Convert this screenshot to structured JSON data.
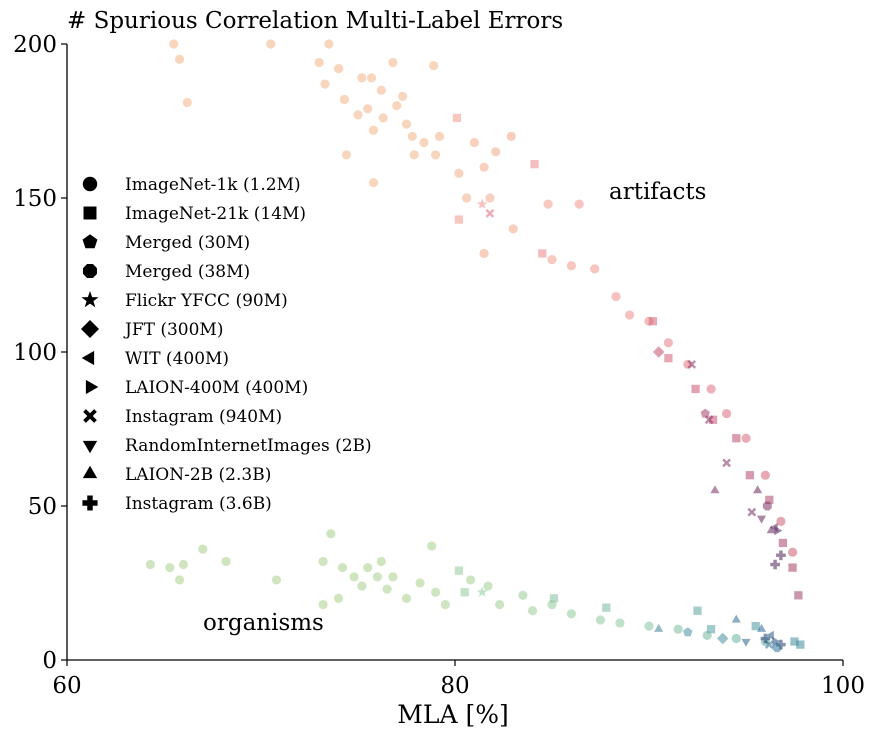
{
  "chart_data": {
    "type": "scatter",
    "title": "# Spurious Correlation Multi-Label Errors",
    "xlabel": "MLA [%]",
    "ylabel": "",
    "xlim": [
      60,
      100
    ],
    "ylim": [
      0,
      200
    ],
    "x_ticks": [
      60,
      80,
      100
    ],
    "y_ticks": [
      0,
      50,
      100,
      150,
      200
    ],
    "grid": false,
    "legend_position": "left",
    "legend": [
      {
        "label": "ImageNet-1k (1.2M)",
        "marker": "circle"
      },
      {
        "label": "ImageNet-21k (14M)",
        "marker": "square"
      },
      {
        "label": "Merged (30M)",
        "marker": "pentagon"
      },
      {
        "label": "Merged (38M)",
        "marker": "octagon"
      },
      {
        "label": "Flickr YFCC (90M)",
        "marker": "star"
      },
      {
        "label": "JFT (300M)",
        "marker": "diamond"
      },
      {
        "label": "WIT (400M)",
        "marker": "triangle-left"
      },
      {
        "label": "LAION-400M (400M)",
        "marker": "triangle-right"
      },
      {
        "label": "Instagram (940M)",
        "marker": "x"
      },
      {
        "label": "RandomInternetImages (2B)",
        "marker": "triangle-down"
      },
      {
        "label": "LAION-2B (2.3B)",
        "marker": "triangle-up"
      },
      {
        "label": "Instagram (3.6B)",
        "marker": "plus"
      }
    ],
    "annotations": [
      {
        "text": "artifacts",
        "x": 88,
        "y": 150
      },
      {
        "text": "organisms",
        "x": 67,
        "y": 11
      }
    ],
    "series": [
      {
        "group": "artifacts",
        "color_range": [
          "#f0b487",
          "#f08c8c",
          "#c8506e",
          "#6e2860",
          "#3c1e50"
        ],
        "points": [
          {
            "marker": "circle",
            "x": 65.5,
            "y": 200
          },
          {
            "marker": "circle",
            "x": 70.5,
            "y": 200
          },
          {
            "marker": "circle",
            "x": 73.5,
            "y": 200
          },
          {
            "marker": "circle",
            "x": 65.8,
            "y": 195
          },
          {
            "marker": "circle",
            "x": 66.2,
            "y": 181
          },
          {
            "marker": "circle",
            "x": 73.0,
            "y": 194
          },
          {
            "marker": "circle",
            "x": 74.0,
            "y": 192
          },
          {
            "marker": "circle",
            "x": 75.2,
            "y": 189
          },
          {
            "marker": "circle",
            "x": 75.7,
            "y": 189
          },
          {
            "marker": "circle",
            "x": 76.8,
            "y": 194
          },
          {
            "marker": "circle",
            "x": 78.9,
            "y": 193
          },
          {
            "marker": "circle",
            "x": 73.3,
            "y": 187
          },
          {
            "marker": "circle",
            "x": 74.3,
            "y": 182
          },
          {
            "marker": "circle",
            "x": 76.2,
            "y": 185
          },
          {
            "marker": "circle",
            "x": 77.3,
            "y": 183
          },
          {
            "marker": "circle",
            "x": 75.0,
            "y": 177
          },
          {
            "marker": "circle",
            "x": 75.5,
            "y": 179
          },
          {
            "marker": "circle",
            "x": 76.3,
            "y": 176
          },
          {
            "marker": "circle",
            "x": 77.0,
            "y": 180
          },
          {
            "marker": "circle",
            "x": 75.8,
            "y": 172
          },
          {
            "marker": "circle",
            "x": 77.5,
            "y": 174
          },
          {
            "marker": "circle",
            "x": 77.8,
            "y": 170
          },
          {
            "marker": "circle",
            "x": 78.4,
            "y": 168
          },
          {
            "marker": "circle",
            "x": 74.4,
            "y": 164
          },
          {
            "marker": "circle",
            "x": 77.9,
            "y": 164
          },
          {
            "marker": "circle",
            "x": 79.2,
            "y": 170
          },
          {
            "marker": "circle",
            "x": 75.8,
            "y": 155
          },
          {
            "marker": "circle",
            "x": 79.0,
            "y": 164
          },
          {
            "marker": "circle",
            "x": 80.2,
            "y": 158
          },
          {
            "marker": "circle",
            "x": 81.0,
            "y": 168
          },
          {
            "marker": "circle",
            "x": 82.1,
            "y": 165
          },
          {
            "marker": "circle",
            "x": 82.9,
            "y": 170
          },
          {
            "marker": "circle",
            "x": 81.5,
            "y": 160
          },
          {
            "marker": "circle",
            "x": 80.6,
            "y": 150
          },
          {
            "marker": "circle",
            "x": 81.8,
            "y": 150
          },
          {
            "marker": "circle",
            "x": 81.5,
            "y": 132
          },
          {
            "marker": "circle",
            "x": 83.0,
            "y": 140
          },
          {
            "marker": "circle",
            "x": 84.8,
            "y": 148
          },
          {
            "marker": "circle",
            "x": 86.4,
            "y": 148
          },
          {
            "marker": "circle",
            "x": 85.0,
            "y": 130
          },
          {
            "marker": "circle",
            "x": 86.0,
            "y": 128
          },
          {
            "marker": "circle",
            "x": 87.2,
            "y": 127
          },
          {
            "marker": "circle",
            "x": 88.3,
            "y": 118
          },
          {
            "marker": "circle",
            "x": 89.0,
            "y": 112
          },
          {
            "marker": "circle",
            "x": 90.0,
            "y": 110
          },
          {
            "marker": "circle",
            "x": 91.0,
            "y": 103
          },
          {
            "marker": "circle",
            "x": 92.0,
            "y": 96
          },
          {
            "marker": "circle",
            "x": 93.2,
            "y": 88
          },
          {
            "marker": "circle",
            "x": 94.0,
            "y": 80
          },
          {
            "marker": "circle",
            "x": 95.0,
            "y": 72
          },
          {
            "marker": "circle",
            "x": 96.0,
            "y": 60
          },
          {
            "marker": "circle",
            "x": 96.8,
            "y": 45
          },
          {
            "marker": "circle",
            "x": 97.4,
            "y": 35
          },
          {
            "marker": "square",
            "x": 80.1,
            "y": 176
          },
          {
            "marker": "square",
            "x": 84.1,
            "y": 161
          },
          {
            "marker": "square",
            "x": 80.2,
            "y": 143
          },
          {
            "marker": "square",
            "x": 84.5,
            "y": 132
          },
          {
            "marker": "square",
            "x": 90.2,
            "y": 110
          },
          {
            "marker": "square",
            "x": 91.0,
            "y": 98
          },
          {
            "marker": "square",
            "x": 92.4,
            "y": 88
          },
          {
            "marker": "square",
            "x": 93.3,
            "y": 78
          },
          {
            "marker": "square",
            "x": 94.5,
            "y": 72
          },
          {
            "marker": "square",
            "x": 95.2,
            "y": 60
          },
          {
            "marker": "square",
            "x": 96.2,
            "y": 52
          },
          {
            "marker": "square",
            "x": 96.9,
            "y": 38
          },
          {
            "marker": "square",
            "x": 97.4,
            "y": 30
          },
          {
            "marker": "square",
            "x": 97.7,
            "y": 21
          },
          {
            "marker": "x",
            "x": 81.8,
            "y": 145
          },
          {
            "marker": "x",
            "x": 92.2,
            "y": 96
          },
          {
            "marker": "x",
            "x": 93.1,
            "y": 78
          },
          {
            "marker": "x",
            "x": 94.0,
            "y": 64
          },
          {
            "marker": "x",
            "x": 95.3,
            "y": 48
          },
          {
            "marker": "triangle-up",
            "x": 93.4,
            "y": 55
          },
          {
            "marker": "triangle-up",
            "x": 95.6,
            "y": 55
          },
          {
            "marker": "triangle-up",
            "x": 96.3,
            "y": 42
          },
          {
            "marker": "triangle-left",
            "x": 96.5,
            "y": 43
          },
          {
            "marker": "triangle-right",
            "x": 96.6,
            "y": 42
          },
          {
            "marker": "plus",
            "x": 96.8,
            "y": 34
          },
          {
            "marker": "plus",
            "x": 96.5,
            "y": 31
          },
          {
            "marker": "diamond",
            "x": 90.5,
            "y": 100
          },
          {
            "marker": "star",
            "x": 81.4,
            "y": 148
          },
          {
            "marker": "pentagon",
            "x": 92.9,
            "y": 80
          },
          {
            "marker": "triangle-down",
            "x": 95.8,
            "y": 46
          },
          {
            "marker": "octagon",
            "x": 96.1,
            "y": 50
          }
        ]
      },
      {
        "group": "organisms",
        "color_range": [
          "#a8d08c",
          "#8cc8a0",
          "#50a0a0",
          "#2c6e96",
          "#1e2e64"
        ],
        "points": [
          {
            "marker": "circle",
            "x": 64.3,
            "y": 31
          },
          {
            "marker": "circle",
            "x": 65.3,
            "y": 30
          },
          {
            "marker": "circle",
            "x": 65.8,
            "y": 26
          },
          {
            "marker": "circle",
            "x": 66.0,
            "y": 31
          },
          {
            "marker": "circle",
            "x": 67.0,
            "y": 36
          },
          {
            "marker": "circle",
            "x": 68.2,
            "y": 32
          },
          {
            "marker": "circle",
            "x": 70.8,
            "y": 26
          },
          {
            "marker": "circle",
            "x": 73.2,
            "y": 32
          },
          {
            "marker": "circle",
            "x": 73.2,
            "y": 18
          },
          {
            "marker": "circle",
            "x": 73.6,
            "y": 41
          },
          {
            "marker": "circle",
            "x": 74.0,
            "y": 20
          },
          {
            "marker": "circle",
            "x": 74.2,
            "y": 30
          },
          {
            "marker": "circle",
            "x": 74.8,
            "y": 27
          },
          {
            "marker": "circle",
            "x": 75.2,
            "y": 24
          },
          {
            "marker": "circle",
            "x": 75.5,
            "y": 30
          },
          {
            "marker": "circle",
            "x": 76.0,
            "y": 27
          },
          {
            "marker": "circle",
            "x": 76.2,
            "y": 32
          },
          {
            "marker": "circle",
            "x": 76.5,
            "y": 23
          },
          {
            "marker": "circle",
            "x": 76.8,
            "y": 27
          },
          {
            "marker": "circle",
            "x": 77.5,
            "y": 20
          },
          {
            "marker": "circle",
            "x": 78.2,
            "y": 25
          },
          {
            "marker": "circle",
            "x": 78.8,
            "y": 37
          },
          {
            "marker": "circle",
            "x": 79.0,
            "y": 22
          },
          {
            "marker": "circle",
            "x": 79.5,
            "y": 18
          },
          {
            "marker": "circle",
            "x": 80.8,
            "y": 26
          },
          {
            "marker": "circle",
            "x": 81.7,
            "y": 24
          },
          {
            "marker": "circle",
            "x": 82.3,
            "y": 18
          },
          {
            "marker": "circle",
            "x": 83.5,
            "y": 21
          },
          {
            "marker": "circle",
            "x": 84.0,
            "y": 16
          },
          {
            "marker": "circle",
            "x": 85.0,
            "y": 18
          },
          {
            "marker": "circle",
            "x": 86.0,
            "y": 15
          },
          {
            "marker": "circle",
            "x": 87.5,
            "y": 13
          },
          {
            "marker": "circle",
            "x": 88.5,
            "y": 12
          },
          {
            "marker": "circle",
            "x": 90.0,
            "y": 11
          },
          {
            "marker": "circle",
            "x": 91.5,
            "y": 10
          },
          {
            "marker": "circle",
            "x": 93.0,
            "y": 8
          },
          {
            "marker": "circle",
            "x": 94.5,
            "y": 7
          },
          {
            "marker": "circle",
            "x": 96.0,
            "y": 6
          },
          {
            "marker": "square",
            "x": 80.2,
            "y": 29
          },
          {
            "marker": "square",
            "x": 80.5,
            "y": 22
          },
          {
            "marker": "square",
            "x": 85.1,
            "y": 20
          },
          {
            "marker": "square",
            "x": 87.8,
            "y": 17
          },
          {
            "marker": "square",
            "x": 92.5,
            "y": 16
          },
          {
            "marker": "square",
            "x": 93.2,
            "y": 10
          },
          {
            "marker": "square",
            "x": 95.5,
            "y": 11
          },
          {
            "marker": "square",
            "x": 97.5,
            "y": 6
          },
          {
            "marker": "square",
            "x": 97.8,
            "y": 5
          },
          {
            "marker": "triangle-up",
            "x": 90.5,
            "y": 10
          },
          {
            "marker": "triangle-up",
            "x": 94.5,
            "y": 13
          },
          {
            "marker": "triangle-up",
            "x": 95.8,
            "y": 10
          },
          {
            "marker": "triangle-left",
            "x": 96.3,
            "y": 8
          },
          {
            "marker": "triangle-right",
            "x": 96.5,
            "y": 6
          },
          {
            "marker": "x",
            "x": 96.2,
            "y": 5
          },
          {
            "marker": "plus",
            "x": 96.0,
            "y": 7
          },
          {
            "marker": "plus",
            "x": 96.8,
            "y": 5
          },
          {
            "marker": "star",
            "x": 81.4,
            "y": 22
          },
          {
            "marker": "diamond",
            "x": 93.8,
            "y": 7
          },
          {
            "marker": "triangle-down",
            "x": 95.0,
            "y": 6
          },
          {
            "marker": "octagon",
            "x": 96.6,
            "y": 4
          },
          {
            "marker": "pentagon",
            "x": 92.0,
            "y": 9
          }
        ]
      }
    ]
  }
}
